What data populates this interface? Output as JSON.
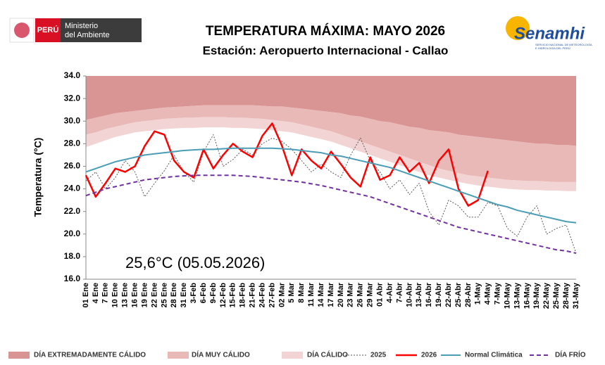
{
  "chart_data": {
    "type": "line",
    "title": "TEMPERATURA MÁXIMA:  MAYO 2026",
    "subtitle": "Estación: Aeropuerto Internacional - Callao",
    "y_label": "Temperatura (°C)",
    "annotation": "25,6°C (05.05.2026)",
    "logo_left": {
      "country": "PERÚ",
      "ministry": [
        "Ministerio",
        "del Ambiente"
      ]
    },
    "logo_right": {
      "name": "Senamhi",
      "subtitle": [
        "SERVICIO NACIONAL DE METEOROLOGÍA",
        "E HIDROLOGÍA DEL PERÚ"
      ]
    },
    "categories": [
      "01 Ene",
      "4 Ene",
      "7 Ene",
      "10 Ene",
      "13 Ene",
      "16 Ene",
      "19 Ene",
      "22 Ene",
      "25 Ene",
      "28 Ene",
      "31 Ene",
      "3-Feb",
      "6-Feb",
      "9-Feb",
      "12-Feb",
      "15-Feb",
      "18-Feb",
      "21-Feb",
      "24-Feb",
      "27-Feb",
      "02 Mar",
      "5 Mar",
      "8 Mar",
      "11 Mar",
      "14 Mar",
      "17 Mar",
      "20 Mar",
      "23 Mar",
      "26 Mar",
      "29 Mar",
      "01 Abr",
      "4-Abr",
      "7-Abr",
      "10-Abr",
      "13-Abr",
      "16-Abr",
      "19-Abr",
      "22-Abr",
      "25-Abr",
      "28-Abr",
      "1-May",
      "4-May",
      "7-May",
      "10-May",
      "13-May",
      "16-May",
      "19-May",
      "22-May",
      "25-May",
      "28-May",
      "31-May"
    ],
    "ylim": [
      16,
      34
    ],
    "yticks": [
      {
        "value": 16,
        "label": "16.0"
      },
      {
        "value": 18,
        "label": "18.0"
      },
      {
        "value": 20,
        "label": "20.0"
      },
      {
        "value": 22,
        "label": "22.0"
      },
      {
        "value": 24,
        "label": "24.0"
      },
      {
        "value": 26,
        "label": "26.0"
      },
      {
        "value": 28,
        "label": "28.0"
      },
      {
        "value": 30,
        "label": "30.0"
      },
      {
        "value": 32,
        "label": "32.0"
      },
      {
        "value": 34,
        "label": "34.0"
      }
    ],
    "grid": false,
    "bands": [
      {
        "name": "DÍA EXTREMADAMENTE CÁLIDO",
        "color": "#d99594",
        "lower": [
          30.1,
          30.3,
          30.5,
          30.7,
          30.8,
          30.9,
          31.0,
          31.1,
          31.2,
          31.25,
          31.3,
          31.35,
          31.4,
          31.4,
          31.4,
          31.4,
          31.4,
          31.4,
          31.35,
          31.3,
          31.3,
          31.2,
          31.1,
          31.0,
          30.9,
          30.8,
          30.7,
          30.5,
          30.4,
          30.2,
          30.0,
          29.9,
          29.7,
          29.5,
          29.4,
          29.2,
          29.1,
          29.0,
          28.8,
          28.7,
          28.6,
          28.5,
          28.4,
          28.3,
          28.2,
          28.1,
          28.0,
          28.0,
          27.9,
          27.9,
          27.8
        ]
      },
      {
        "name": "DÍA MUY CÁLIDO",
        "color": "#e9b9b8",
        "lower": [
          28.8,
          29.0,
          29.3,
          29.5,
          29.7,
          29.9,
          30.0,
          30.1,
          30.2,
          30.25,
          30.3,
          30.3,
          30.35,
          30.35,
          30.35,
          30.3,
          30.3,
          30.25,
          30.2,
          30.1,
          30.0,
          29.9,
          29.7,
          29.5,
          29.3,
          29.1,
          28.8,
          28.5,
          28.2,
          27.9,
          27.6,
          27.3,
          27.0,
          26.7,
          26.4,
          26.1,
          25.8,
          25.6,
          25.4,
          25.2,
          25.1,
          25.0,
          24.9,
          24.8,
          24.75,
          24.7,
          24.7,
          24.65,
          24.6,
          24.6,
          24.6
        ]
      },
      {
        "name": "DÍA CÁLIDO",
        "color": "#f3d4d4",
        "lower": [
          27.7,
          28.0,
          28.3,
          28.6,
          28.8,
          29.0,
          29.1,
          29.2,
          29.3,
          29.35,
          29.4,
          29.4,
          29.45,
          29.45,
          29.45,
          29.4,
          29.4,
          29.35,
          29.3,
          29.2,
          29.1,
          29.0,
          28.8,
          28.6,
          28.4,
          28.2,
          27.9,
          27.6,
          27.3,
          27.0,
          26.7,
          26.4,
          26.1,
          25.8,
          25.5,
          25.2,
          25.0,
          24.8,
          24.6,
          24.45,
          24.3,
          24.2,
          24.1,
          24.0,
          23.95,
          23.9,
          23.9,
          23.85,
          23.85,
          23.8,
          23.8
        ]
      }
    ],
    "series": [
      {
        "name": "2025",
        "color": "#595959",
        "dash": "2,2",
        "width": 1,
        "values": [
          24.7,
          25.5,
          24.0,
          25.0,
          26.5,
          25.5,
          23.3,
          24.5,
          25.6,
          27.0,
          25.5,
          24.6,
          27.3,
          28.8,
          26.0,
          26.6,
          27.5,
          27.0,
          28.0,
          28.5,
          28.2,
          27.5,
          26.5,
          25.5,
          26.2,
          25.5,
          25.0,
          27.0,
          28.5,
          26.5,
          25.5,
          24.0,
          24.8,
          23.5,
          24.5,
          22.0,
          20.8,
          23.0,
          22.5,
          21.5,
          21.5,
          22.8,
          22.5,
          20.5,
          19.8,
          21.5,
          22.5,
          20.0,
          20.5,
          20.8,
          18.3
        ]
      },
      {
        "name": "2026",
        "color": "#ff0000",
        "dash": "none",
        "width": 2.5,
        "values": [
          25.2,
          23.3,
          24.5,
          25.8,
          25.5,
          26.0,
          27.8,
          29.1,
          28.8,
          26.5,
          25.5,
          25.0,
          27.5,
          25.8,
          27.0,
          28.0,
          27.3,
          26.8,
          28.7,
          29.8,
          27.8,
          25.2,
          27.5,
          26.5,
          25.8,
          27.3,
          26.2,
          25.0,
          24.2,
          26.8,
          24.8,
          25.2,
          26.8,
          25.5,
          26.3,
          24.5,
          26.5,
          27.5,
          24.0,
          22.5,
          23.0,
          25.6,
          null,
          null,
          null,
          null,
          null,
          null,
          null,
          null,
          null
        ]
      },
      {
        "name": "Normal Climática",
        "color": "#4a9db5",
        "dash": "none",
        "width": 2,
        "values": [
          25.5,
          25.8,
          26.1,
          26.4,
          26.6,
          26.8,
          27.0,
          27.1,
          27.2,
          27.3,
          27.4,
          27.45,
          27.5,
          27.5,
          27.55,
          27.6,
          27.6,
          27.6,
          27.6,
          27.6,
          27.55,
          27.5,
          27.4,
          27.3,
          27.2,
          27.0,
          26.9,
          26.7,
          26.5,
          26.3,
          26.1,
          25.9,
          25.6,
          25.3,
          25.0,
          24.7,
          24.4,
          24.1,
          23.8,
          23.5,
          23.2,
          22.9,
          22.6,
          22.4,
          22.1,
          21.9,
          21.7,
          21.5,
          21.3,
          21.1,
          21.0
        ]
      },
      {
        "name": "DÍA FRÍO",
        "color": "#7030a0",
        "dash": "6,4",
        "width": 2,
        "values": [
          23.4,
          23.7,
          24.0,
          24.2,
          24.4,
          24.6,
          24.8,
          24.9,
          25.0,
          25.1,
          25.15,
          25.2,
          25.2,
          25.2,
          25.2,
          25.2,
          25.15,
          25.1,
          25.0,
          24.9,
          24.8,
          24.7,
          24.6,
          24.45,
          24.3,
          24.1,
          23.9,
          23.7,
          23.5,
          23.3,
          23.0,
          22.7,
          22.4,
          22.1,
          21.8,
          21.5,
          21.2,
          20.9,
          20.6,
          20.4,
          20.2,
          20.0,
          19.8,
          19.6,
          19.4,
          19.2,
          19.0,
          18.8,
          18.6,
          18.5,
          18.3
        ]
      }
    ]
  }
}
